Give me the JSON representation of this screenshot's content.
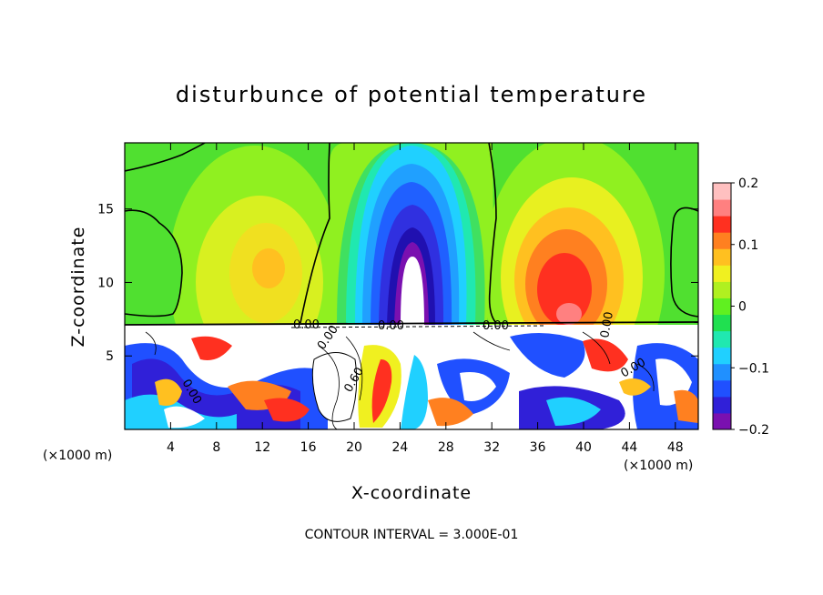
{
  "chart_data": {
    "type": "heatmap",
    "title": "disturbunce of potential temperature",
    "xlabel": "X-coordinate",
    "ylabel": "Z-coordinate",
    "x_unit": "(×1000 m)",
    "z_unit": "(×1000 m)",
    "xlim": [
      0,
      50
    ],
    "ylim": [
      0,
      19.5
    ],
    "x_ticks": [
      "4",
      "8",
      "12",
      "16",
      "20",
      "24",
      "28",
      "32",
      "36",
      "40",
      "44",
      "48"
    ],
    "y_ticks": [
      "5",
      "10",
      "15"
    ],
    "colorbar": {
      "range": [
        -0.2,
        0.2
      ],
      "tick_labels": [
        "0.2",
        "0.1",
        "0",
        "−0.1",
        "−0.2"
      ],
      "colors": [
        "#7a10b0",
        "#3020d8",
        "#2050ff",
        "#2090ff",
        "#20d0ff",
        "#20e8b0",
        "#20e050",
        "#60f020",
        "#b0f020",
        "#f0f020",
        "#ffc020",
        "#ff8020",
        "#ff3020",
        "#ff8080",
        "#ffc0c0"
      ]
    },
    "contour_labels": [
      "0.00",
      "0.00",
      "0.00",
      "0.00",
      "0.00",
      "0.60",
      "0.00",
      "0.00"
    ],
    "contour_interval": "CONTOUR INTERVAL = 3.000E-01",
    "upper_features": [
      {
        "kind": "negative core",
        "x": 25,
        "z_bottom": 7.5,
        "z_top": 19.5,
        "min": -0.2
      },
      {
        "kind": "positive core",
        "x": 39,
        "z_bottom": 7.5,
        "z_top": 17,
        "max": 0.18
      },
      {
        "kind": "positive core",
        "x": 12,
        "z_bottom": 7.5,
        "z_top": 16,
        "max": 0.12
      }
    ],
    "lower_layer_top": 7.4
  }
}
